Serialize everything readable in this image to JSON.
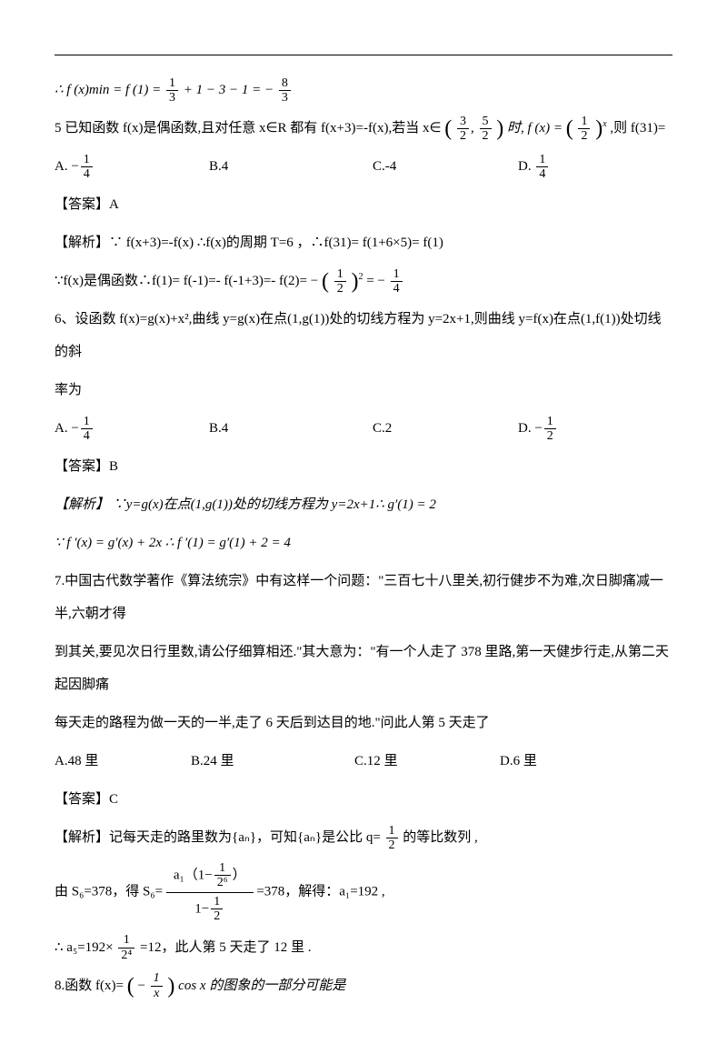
{
  "eq_top": {
    "prefix": "∴ f (x)min = f (1) = ",
    "f1": {
      "n": "1",
      "d": "3"
    },
    "mid1": " + 1 − 3 − 1 = −",
    "f2": {
      "n": "8",
      "d": "3"
    }
  },
  "q5": {
    "stem_a": "5 已知函数 f(x)是偶函数,且对任意 x∈R 都有 f(x+3)=-f(x),若当 x∈",
    "interval_l": {
      "n": "3",
      "d": "2"
    },
    "interval_r": {
      "n": "5",
      "d": "2"
    },
    "stem_b": "时,  f (x) = ",
    "base": {
      "n": "1",
      "d": "2"
    },
    "exp": "x",
    "stem_c": ",则 f(31)=",
    "options": {
      "A_pre": "A. −",
      "A_frac": {
        "n": "1",
        "d": "4"
      },
      "B": "B.4",
      "C": "C.-4",
      "D_pre": "D. ",
      "D_frac": {
        "n": "1",
        "d": "4"
      }
    },
    "ans": "【答案】A",
    "sol1": "【解析】∵ f(x+3)=-f(x) ∴f(x)的周期 T=6 ，∴f(31)= f(1+6×5)= f(1)",
    "sol2_a": "∵f(x)是偶函数∴f(1)= f(-1)=- f(-1+3)=- f(2)= −",
    "sol2_half": {
      "n": "1",
      "d": "2"
    },
    "sol2_exp": "2",
    "sol2_b": " = −",
    "sol2_res": {
      "n": "1",
      "d": "4"
    },
    "opt_widths": [
      "170px",
      "180px",
      "160px",
      "auto"
    ]
  },
  "q6": {
    "stem": "6、设函数 f(x)=g(x)+x²,曲线 y=g(x)在点(1,g(1))处的切线方程为 y=2x+1,则曲线 y=f(x)在点(1,f(1))处切线的斜",
    "stem2": "率为",
    "options": {
      "A_pre": "A. −",
      "A_frac": {
        "n": "1",
        "d": "4"
      },
      "B": "B.4",
      "C": "C.2",
      "D_pre": "D. −",
      "D_frac": {
        "n": "1",
        "d": "2"
      }
    },
    "ans": "【答案】B",
    "sol1": "【解析】 ∵y=g(x)在点(1,g(1))处的切线方程为 y=2x+1∴ g′(1) = 2",
    "sol2": "∵ f ′(x) = g′(x) + 2x ∴ f ′(1) = g′(1) + 2 = 4",
    "opt_widths": [
      "170px",
      "180px",
      "160px",
      "auto"
    ]
  },
  "q7": {
    "l1": "7.中国古代数学著作《算法统宗》中有这样一个问题：\"三百七十八里关,初行健步不为难,次日脚痛减一半,六朝才得",
    "l2": "到其关,要见次日行里数,请公仔细算相还.\"其大意为：\"有一个人走了 378 里路,第一天健步行走,从第二天起因脚痛",
    "l3": "每天走的路程为做一天的一半,走了 6 天后到达目的地.\"问此人第 5 天走了",
    "options": {
      "A": "A.48 里",
      "B": "B.24 里",
      "C": "C.12 里",
      "D": "D.6 里"
    },
    "ans": "【答案】C",
    "sol1_a": "【解析】记每天走的路里数为{aₙ}，可知{aₙ}是公比 q=",
    "sol1_half": {
      "n": "1",
      "d": "2"
    },
    "sol1_b": "的等比数列 ,",
    "sol2_a": "由 S₆=378，得 S₆=",
    "sol2_num_a": "a₁（1−",
    "sol2_num_frac": {
      "n": "1",
      "d": "2⁶"
    },
    "sol2_num_b": "）",
    "sol2_den_a": "1−",
    "sol2_den_frac": {
      "n": "1",
      "d": "2"
    },
    "sol2_b": "=378，解得：a₁=192 ,",
    "sol3_a": "∴ a₅=192×",
    "sol3_frac": {
      "n": "1",
      "d": "2⁴"
    },
    "sol3_b": "=12，此人第 5 天走了 12 里 .",
    "opt_widths": [
      "150px",
      "180px",
      "160px",
      "auto"
    ]
  },
  "q8": {
    "pre": "8.函数 f(x)= ",
    "inner_pre": "−",
    "frac": {
      "n": "1",
      "d": "x"
    },
    "post": "cos x 的图象的一部分可能是"
  }
}
